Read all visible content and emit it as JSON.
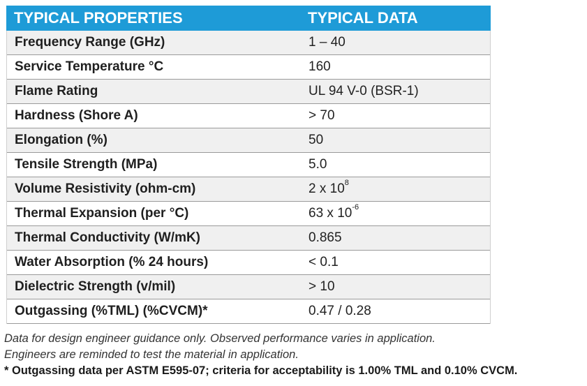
{
  "table": {
    "header": {
      "col1": "TYPICAL PROPERTIES",
      "col2": "TYPICAL DATA"
    },
    "rows": [
      {
        "property": "Frequency Range (GHz)",
        "value": "1 – 40"
      },
      {
        "property": "Service Temperature °C",
        "value": "160"
      },
      {
        "property": "Flame Rating",
        "value": "UL 94 V-0 (BSR-1)"
      },
      {
        "property": "Hardness (Shore A)",
        "value": "> 70"
      },
      {
        "property": "Elongation (%)",
        "value": "50"
      },
      {
        "property": "Tensile Strength (MPa)",
        "value": "5.0"
      },
      {
        "property": "Volume Resistivity (ohm-cm)",
        "value_base": "2 x 10",
        "value_sup": "8"
      },
      {
        "property": "Thermal Expansion (per °C)",
        "value_base": "63 x 10",
        "value_sup": "-6"
      },
      {
        "property": "Thermal Conductivity (W/mK)",
        "value": "0.865"
      },
      {
        "property": "Water Absorption (% 24 hours)",
        "value": "< 0.1"
      },
      {
        "property": "Dielectric Strength (v/mil)",
        "value": "> 10"
      },
      {
        "property": "Outgassing (%TML) (%CVCM)*",
        "value": "0.47 / 0.28"
      }
    ]
  },
  "notes": {
    "line1": "Data for design engineer guidance only. Observed performance varies in application.",
    "line2": "Engineers are reminded to test the material in application.",
    "line3": "* Outgassing data per ASTM E595-07; criteria for acceptability is 1.00% TML and 0.10% CVCM."
  },
  "colors": {
    "header_bg": "#1e9bd7",
    "header_text": "#ffffff",
    "row_alt_bg": "#f0f0f0"
  }
}
